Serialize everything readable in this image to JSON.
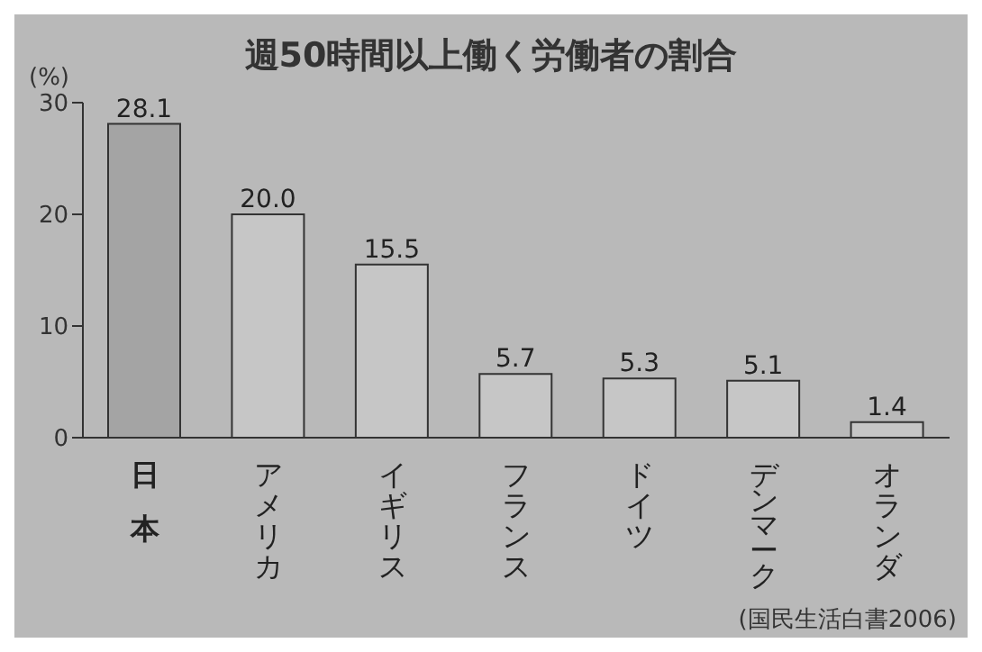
{
  "chart_data": {
    "type": "bar",
    "title": "週50時間以上働く労働者の割合",
    "ylabel": "(%)",
    "categories": [
      "日本",
      "アメリカ",
      "イギリス",
      "フランス",
      "ドイツ",
      "デンマーク",
      "オランダ"
    ],
    "values": [
      28.1,
      20.0,
      15.5,
      5.7,
      5.3,
      5.1,
      1.4
    ],
    "value_labels": [
      "28.1",
      "20.0",
      "15.5",
      "5.7",
      "5.3",
      "5.1",
      "1.4"
    ],
    "colors": [
      "#a4a4a4",
      "#c6c6c6",
      "#c6c6c6",
      "#c6c6c6",
      "#c6c6c6",
      "#c6c6c6",
      "#c6c6c6"
    ],
    "ylim": [
      0,
      30
    ],
    "yticks": [
      0,
      10,
      20,
      30
    ],
    "grid": false,
    "annotations": [
      "(国民生活白書2006)"
    ]
  }
}
